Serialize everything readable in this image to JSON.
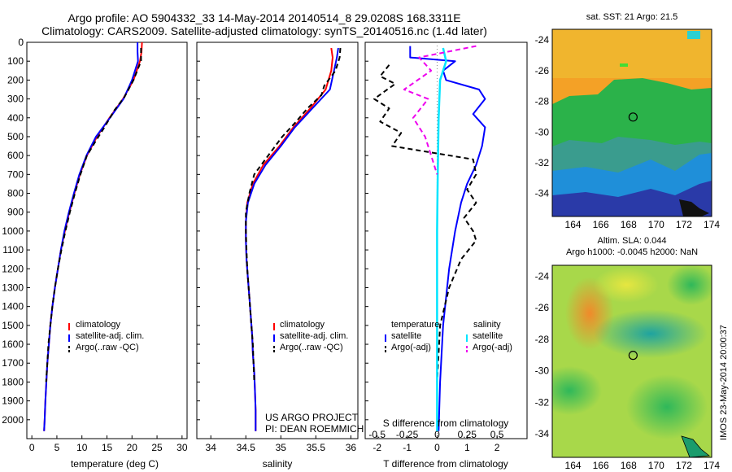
{
  "header": {
    "title_line1": "Argo profile: AO 5904332_33 14-May-2014 20140514_8 29.0208S 168.3311E",
    "title_line2": "Climatology: CARS2009. Satellite-adjusted climatology: synTS_20140516.nc (1.4d later)"
  },
  "credit": {
    "line1": "US ARGO PROJECT",
    "line2": "PI: DEAN ROEMMICH",
    "stamp": "IMOS 23-May-2014 20:00:37"
  },
  "colors": {
    "climatology": "#ff0000",
    "satellite": "#0000ff",
    "argo": "#000000",
    "satellite_s": "#00e5ff",
    "argo_s": "#ee00ee",
    "map_ocean_deep": "#2a3aa8"
  },
  "chart_data": [
    {
      "id": "temperature",
      "type": "line",
      "xlabel": "temperature (deg C)",
      "ylabel": "",
      "xlim": [
        -1,
        31
      ],
      "ylim": [
        2100,
        0
      ],
      "xticks": [
        "0",
        "5",
        "10",
        "15",
        "20",
        "25",
        "30"
      ],
      "yticks": [
        "0",
        "100",
        "200",
        "300",
        "400",
        "500",
        "600",
        "700",
        "800",
        "900",
        "1000",
        "1100",
        "1200",
        "1300",
        "1400",
        "1500",
        "1600",
        "1700",
        "1800",
        "1900",
        "2000"
      ],
      "legend": [
        "climatology",
        "satellite-adj. clim.",
        "Argo(..raw -QC)"
      ],
      "legend_position": "lower-middle",
      "series": [
        {
          "name": "climatology",
          "style": "red",
          "points": [
            [
              22,
              0
            ],
            [
              21.9,
              50
            ],
            [
              21.6,
              100
            ],
            [
              20.3,
              200
            ],
            [
              18.2,
              300
            ],
            [
              15.5,
              400
            ],
            [
              13,
              500
            ],
            [
              11,
              600
            ],
            [
              9.6,
              700
            ],
            [
              8.5,
              800
            ],
            [
              7.5,
              900
            ],
            [
              6.6,
              1000
            ],
            [
              5.8,
              1100
            ],
            [
              5.2,
              1200
            ],
            [
              4.6,
              1300
            ],
            [
              4.1,
              1400
            ],
            [
              3.7,
              1500
            ],
            [
              3.4,
              1600
            ],
            [
              3.1,
              1700
            ],
            [
              2.9,
              1800
            ],
            [
              2.7,
              1900
            ],
            [
              2.55,
              2000
            ],
            [
              2.45,
              2060
            ]
          ]
        },
        {
          "name": "satellite-adj. clim.",
          "style": "blue",
          "points": [
            [
              21.1,
              0
            ],
            [
              21.1,
              50
            ],
            [
              21.2,
              100
            ],
            [
              20,
              200
            ],
            [
              18.3,
              300
            ],
            [
              15.6,
              400
            ],
            [
              12.8,
              500
            ],
            [
              10.9,
              600
            ],
            [
              9.5,
              700
            ],
            [
              8.4,
              800
            ],
            [
              7.4,
              900
            ],
            [
              6.5,
              1000
            ],
            [
              5.8,
              1100
            ],
            [
              5.2,
              1200
            ],
            [
              4.6,
              1300
            ],
            [
              4.1,
              1400
            ],
            [
              3.7,
              1500
            ],
            [
              3.4,
              1600
            ],
            [
              3.1,
              1700
            ],
            [
              2.9,
              1800
            ],
            [
              2.7,
              1900
            ],
            [
              2.55,
              2000
            ],
            [
              2.45,
              2060
            ]
          ]
        },
        {
          "name": "Argo(..raw -QC)",
          "style": "black-dash",
          "points": [
            [
              21.8,
              30
            ],
            [
              21.8,
              100
            ],
            [
              20.3,
              200
            ],
            [
              18.5,
              290
            ],
            [
              16.5,
              360
            ],
            [
              14.5,
              450
            ],
            [
              12.6,
              530
            ],
            [
              11,
              600
            ],
            [
              9.7,
              700
            ],
            [
              8.6,
              800
            ],
            [
              7.6,
              900
            ],
            [
              6.7,
              1000
            ],
            [
              5.9,
              1100
            ],
            [
              5.2,
              1200
            ],
            [
              4.6,
              1300
            ],
            [
              4.1,
              1400
            ],
            [
              3.7,
              1500
            ],
            [
              3.3,
              1600
            ],
            [
              3.1,
              1700
            ],
            [
              2.85,
              1800
            ]
          ]
        }
      ]
    },
    {
      "id": "salinity",
      "type": "line",
      "xlabel": "salinity",
      "ylabel": "",
      "xlim": [
        33.8,
        36.1
      ],
      "ylim": [
        2100,
        0
      ],
      "xticks": [
        "34",
        "34.5",
        "35",
        "35.5",
        "36"
      ],
      "legend": [
        "climatology",
        "satellite-adj. clim.",
        "Argo(..raw -QC)"
      ],
      "legend_position": "lower-middle",
      "series": [
        {
          "name": "climatology",
          "style": "red",
          "points": [
            [
              35.72,
              30
            ],
            [
              35.74,
              80
            ],
            [
              35.72,
              150
            ],
            [
              35.64,
              250
            ],
            [
              35.42,
              350
            ],
            [
              35.18,
              450
            ],
            [
              34.98,
              550
            ],
            [
              34.75,
              650
            ],
            [
              34.6,
              750
            ],
            [
              34.52,
              850
            ],
            [
              34.5,
              950
            ],
            [
              34.5,
              1050
            ],
            [
              34.51,
              1150
            ],
            [
              34.53,
              1250
            ],
            [
              34.55,
              1350
            ],
            [
              34.57,
              1450
            ],
            [
              34.59,
              1550
            ],
            [
              34.6,
              1650
            ],
            [
              34.62,
              1750
            ],
            [
              34.63,
              1850
            ],
            [
              34.64,
              1950
            ],
            [
              34.64,
              2060
            ]
          ]
        },
        {
          "name": "satellite-adj. clim.",
          "style": "blue",
          "points": [
            [
              35.82,
              30
            ],
            [
              35.8,
              80
            ],
            [
              35.76,
              150
            ],
            [
              35.7,
              250
            ],
            [
              35.45,
              350
            ],
            [
              35.2,
              450
            ],
            [
              35,
              550
            ],
            [
              34.78,
              650
            ],
            [
              34.62,
              750
            ],
            [
              34.53,
              850
            ],
            [
              34.5,
              950
            ],
            [
              34.5,
              1050
            ],
            [
              34.51,
              1150
            ],
            [
              34.53,
              1250
            ],
            [
              34.55,
              1350
            ],
            [
              34.57,
              1450
            ],
            [
              34.59,
              1550
            ],
            [
              34.6,
              1650
            ],
            [
              34.62,
              1750
            ],
            [
              34.63,
              1850
            ],
            [
              34.64,
              1950
            ],
            [
              34.64,
              2060
            ]
          ]
        },
        {
          "name": "Argo(..raw -QC)",
          "style": "black-dash",
          "points": [
            [
              35.85,
              30
            ],
            [
              35.84,
              80
            ],
            [
              35.78,
              150
            ],
            [
              35.62,
              230
            ],
            [
              35.58,
              280
            ],
            [
              35.38,
              350
            ],
            [
              35.22,
              420
            ],
            [
              35.02,
              500
            ],
            [
              34.82,
              600
            ],
            [
              34.62,
              700
            ],
            [
              34.55,
              800
            ],
            [
              34.5,
              900
            ],
            [
              34.5,
              1000
            ],
            [
              34.51,
              1100
            ],
            [
              34.52,
              1200
            ],
            [
              34.54,
              1300
            ],
            [
              34.56,
              1400
            ],
            [
              34.58,
              1500
            ],
            [
              34.6,
              1600
            ],
            [
              34.61,
              1700
            ],
            [
              34.62,
              1800
            ]
          ]
        }
      ]
    },
    {
      "id": "differences",
      "type": "line",
      "xlabel": "T difference from climatology",
      "xlabel_top": "S difference from climatology",
      "xlim": [
        -2.4,
        3.0
      ],
      "ylim": [
        2100,
        0
      ],
      "xticks": [
        "-2",
        "-1",
        "0",
        "1",
        "2"
      ],
      "xticks_top": [
        "-0.5",
        "-0.25",
        "0",
        "0.25",
        "0.5"
      ],
      "legend_header": [
        "temperature",
        "salinity"
      ],
      "legend": [
        "satellite",
        "Argo(-adj)",
        "satellite",
        "Argo(-adj)"
      ],
      "legend_position": "lower-middle",
      "series": [
        {
          "name": "satellite",
          "style": "blue",
          "points": [
            [
              -0.9,
              20
            ],
            [
              -0.9,
              80
            ],
            [
              0.6,
              100
            ],
            [
              0.2,
              150
            ],
            [
              0.3,
              200
            ],
            [
              1.4,
              250
            ],
            [
              1.6,
              300
            ],
            [
              1.2,
              380
            ],
            [
              1.6,
              450
            ],
            [
              1.5,
              550
            ],
            [
              1.3,
              650
            ],
            [
              1,
              750
            ],
            [
              0.8,
              850
            ],
            [
              0.6,
              1000
            ],
            [
              0.4,
              1200
            ],
            [
              0.2,
              1500
            ],
            [
              0.1,
              1800
            ],
            [
              0.05,
              2060
            ]
          ]
        },
        {
          "name": "Argo(-adj)",
          "style": "black-dash",
          "points": [
            [
              -1.6,
              120
            ],
            [
              -1.9,
              180
            ],
            [
              -1.4,
              220
            ],
            [
              -2.1,
              300
            ],
            [
              -1.6,
              350
            ],
            [
              -1.9,
              420
            ],
            [
              -1.2,
              480
            ],
            [
              -1.5,
              550
            ],
            [
              1.2,
              620
            ],
            [
              1.3,
              700
            ],
            [
              1,
              780
            ],
            [
              1.3,
              850
            ],
            [
              0.9,
              930
            ],
            [
              1.2,
              1000
            ],
            [
              1.3,
              1050
            ],
            [
              0.8,
              1150
            ],
            [
              0.4,
              1300
            ],
            [
              0.1,
              1500
            ],
            [
              0,
              1800
            ]
          ]
        },
        {
          "name": "satellite",
          "style": "cyan",
          "points": [
            [
              0.2,
              30
            ],
            [
              0.3,
              100
            ],
            [
              0.1,
              200
            ],
            [
              0.05,
              400
            ],
            [
              0.02,
              700
            ],
            [
              0,
              1000
            ],
            [
              0,
              1500
            ],
            [
              0,
              2060
            ]
          ]
        },
        {
          "name": "Argo(-adj)",
          "style": "magenta-dash",
          "points": [
            [
              1.3,
              20
            ],
            [
              -0.6,
              80
            ],
            [
              -0.2,
              150
            ],
            [
              -1.1,
              250
            ],
            [
              -0.3,
              300
            ],
            [
              -0.8,
              400
            ],
            [
              -0.4,
              500
            ],
            [
              -0.2,
              600
            ],
            [
              0,
              700
            ]
          ]
        }
      ]
    },
    {
      "id": "map_sst",
      "type": "heatmap",
      "title": "sat. SST: 21 Argo: 21.5",
      "xlim": [
        162.5,
        174
      ],
      "ylim": [
        -35.5,
        -23.3
      ],
      "xticks": [
        "164",
        "166",
        "168",
        "170",
        "172",
        "174"
      ],
      "yticks": [
        "-24",
        "-26",
        "-28",
        "-30",
        "-32",
        "-34"
      ],
      "marker": {
        "lon": 168.33,
        "lat": -29.02
      }
    },
    {
      "id": "map_sla",
      "type": "heatmap",
      "title": "Altim. SLA: 0.044",
      "subtitle": "Argo h1000: -0.0045 h2000: NaN",
      "xlim": [
        162.5,
        174
      ],
      "ylim": [
        -35.5,
        -23.3
      ],
      "xticks": [
        "164",
        "166",
        "168",
        "170",
        "172",
        "174"
      ],
      "yticks": [
        "-24",
        "-26",
        "-28",
        "-30",
        "-32",
        "-34"
      ],
      "marker": {
        "lon": 168.33,
        "lat": -29.02
      }
    }
  ]
}
